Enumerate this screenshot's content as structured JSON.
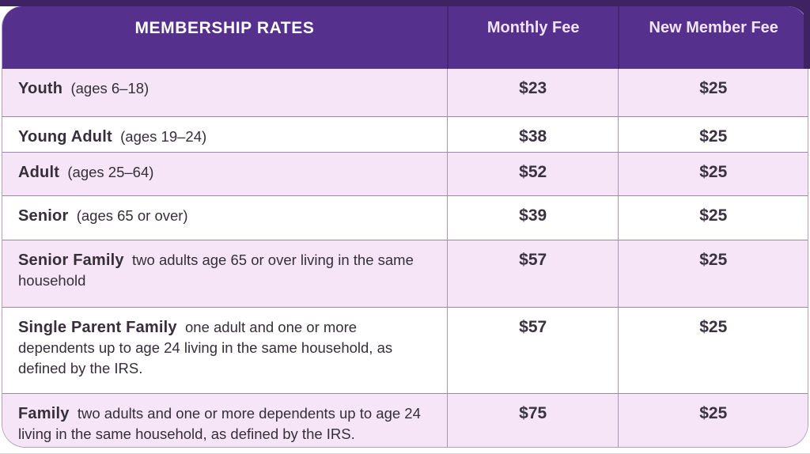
{
  "table": {
    "title": "MEMBERSHIP RATES",
    "columns": [
      "Monthly Fee",
      "New Member Fee"
    ],
    "rows": [
      {
        "label": "Youth",
        "detail": "(ages 6–18)",
        "monthly": "$23",
        "new_member": "$25"
      },
      {
        "label": "Young Adult",
        "detail": "(ages 19–24)",
        "monthly": "$38",
        "new_member": "$25"
      },
      {
        "label": "Adult",
        "detail": "(ages 25–64)",
        "monthly": "$52",
        "new_member": "$25"
      },
      {
        "label": "Senior",
        "detail": "(ages 65 or over)",
        "monthly": "$39",
        "new_member": "$25"
      },
      {
        "label": "Senior Family",
        "detail": "two adults age 65 or over living in the same household",
        "monthly": "$57",
        "new_member": "$25"
      },
      {
        "label": "Single Parent Family",
        "detail": "one adult and one or more dependents up to age 24 living in the same household, as defined by the IRS.",
        "monthly": "$57",
        "new_member": "$25"
      },
      {
        "label": "Family",
        "detail": "two adults and one or more dependents up to age 24 living in the same household, as defined by the IRS.",
        "monthly": "$75",
        "new_member": "$25"
      }
    ]
  },
  "colors": {
    "accent_dark_purple": "#3f2261",
    "header_purple": "#55308c",
    "header_title_text": "#ffffff",
    "header_column_text": "#f0e4f8",
    "row_lavender": "#f5e5f7",
    "row_white": "#ffffff",
    "divider": "#9b89a8",
    "body_text": "#362e38"
  }
}
